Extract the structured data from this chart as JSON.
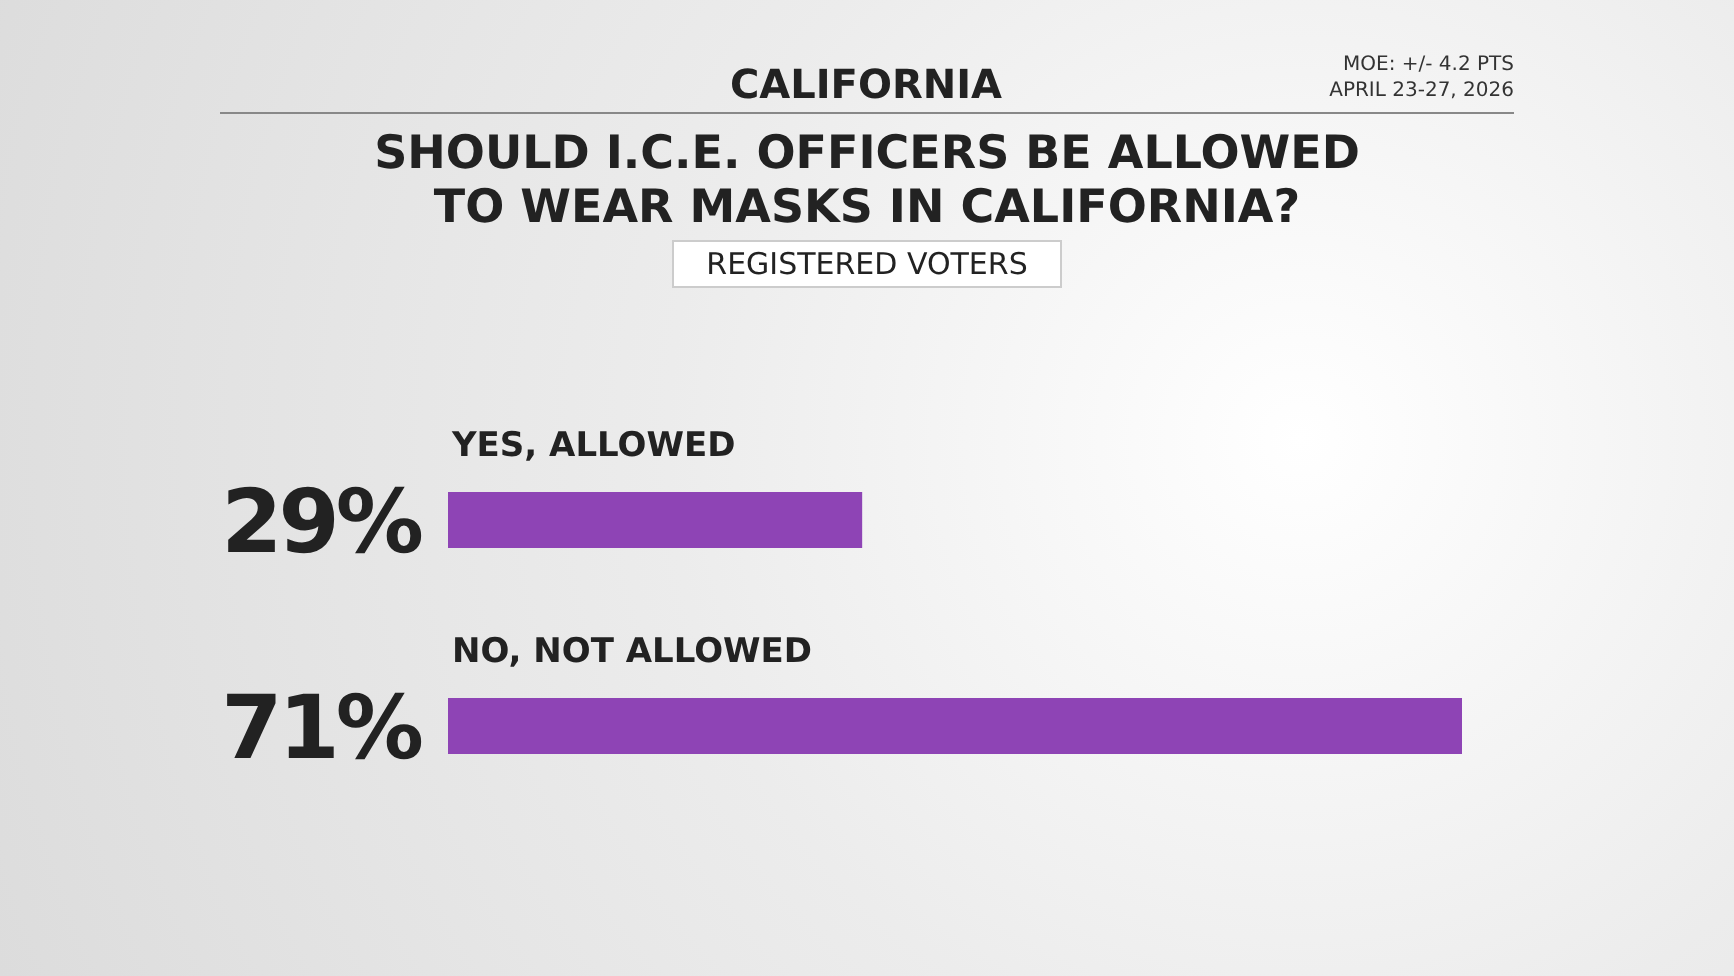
{
  "chart_data": {
    "type": "bar",
    "orientation": "horizontal",
    "title": "SHOULD I.C.E. OFFICERS BE ALLOWED TO WEAR MASKS IN CALIFORNIA?",
    "subtitle": "REGISTERED VOTERS",
    "annotations": [
      "CALIFORNIA",
      "MOE: +/- 4.2 PTS",
      "APRIL 23-27, 2026"
    ],
    "categories": [
      "YES, ALLOWED",
      "NO, NOT ALLOWED"
    ],
    "values": [
      29,
      71
    ],
    "value_labels": [
      "29%",
      "71%"
    ],
    "color": "#8e44b5"
  }
}
